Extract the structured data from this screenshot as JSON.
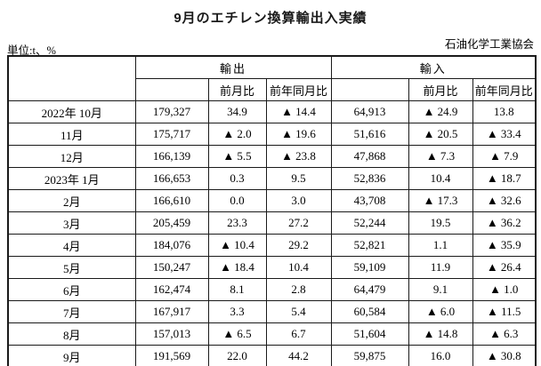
{
  "page": {
    "title": "9月のエチレン換算輸出入実績",
    "unit_label": "単位:t、%",
    "org_label": "石油化学工業協会"
  },
  "colors": {
    "background": "#ffffff",
    "text": "#000000",
    "border": "#1a1a1a",
    "negative_marker": "#000000"
  },
  "table": {
    "col_groups": {
      "export": "輸出",
      "import": "輸入"
    },
    "subheaders": {
      "mom": "前月比",
      "yoy": "前年同月比"
    },
    "rows": [
      {
        "month": "2022年 10月",
        "export": "179,327",
        "export_mom": "34.9",
        "export_yoy": "▲ 14.4",
        "import": "64,913",
        "import_mom": "▲ 24.9",
        "import_yoy": "13.8"
      },
      {
        "month": "11月",
        "export": "175,717",
        "export_mom": "▲ 2.0",
        "export_yoy": "▲ 19.6",
        "import": "51,616",
        "import_mom": "▲ 20.5",
        "import_yoy": "▲ 33.4"
      },
      {
        "month": "12月",
        "export": "166,139",
        "export_mom": "▲ 5.5",
        "export_yoy": "▲ 23.8",
        "import": "47,868",
        "import_mom": "▲ 7.3",
        "import_yoy": "▲ 7.9"
      },
      {
        "month": "2023年 1月",
        "export": "166,653",
        "export_mom": "0.3",
        "export_yoy": "9.5",
        "import": "52,836",
        "import_mom": "10.4",
        "import_yoy": "▲ 18.7"
      },
      {
        "month": "2月",
        "export": "166,610",
        "export_mom": "0.0",
        "export_yoy": "3.0",
        "import": "43,708",
        "import_mom": "▲ 17.3",
        "import_yoy": "▲ 32.6"
      },
      {
        "month": "3月",
        "export": "205,459",
        "export_mom": "23.3",
        "export_yoy": "27.2",
        "import": "52,244",
        "import_mom": "19.5",
        "import_yoy": "▲ 36.2"
      },
      {
        "month": "4月",
        "export": "184,076",
        "export_mom": "▲ 10.4",
        "export_yoy": "29.2",
        "import": "52,821",
        "import_mom": "1.1",
        "import_yoy": "▲ 35.9"
      },
      {
        "month": "5月",
        "export": "150,247",
        "export_mom": "▲ 18.4",
        "export_yoy": "10.4",
        "import": "59,109",
        "import_mom": "11.9",
        "import_yoy": "▲ 26.4"
      },
      {
        "month": "6月",
        "export": "162,474",
        "export_mom": "8.1",
        "export_yoy": "2.8",
        "import": "64,479",
        "import_mom": "9.1",
        "import_yoy": "▲ 1.0"
      },
      {
        "month": "7月",
        "export": "167,917",
        "export_mom": "3.3",
        "export_yoy": "5.4",
        "import": "60,584",
        "import_mom": "▲ 6.0",
        "import_yoy": "▲ 11.5"
      },
      {
        "month": "8月",
        "export": "157,013",
        "export_mom": "▲ 6.5",
        "export_yoy": "6.7",
        "import": "51,604",
        "import_mom": "▲ 14.8",
        "import_yoy": "▲ 6.3"
      },
      {
        "month": "9月",
        "export": "191,569",
        "export_mom": "22.0",
        "export_yoy": "44.2",
        "import": "59,875",
        "import_mom": "16.0",
        "import_yoy": "▲ 30.8"
      }
    ]
  }
}
